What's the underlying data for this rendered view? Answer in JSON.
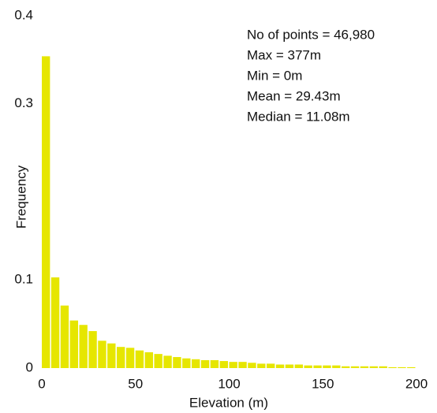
{
  "chart_data": {
    "type": "histogram",
    "xlabel": "Elevation (m)",
    "ylabel": "Frequency",
    "annotations": [
      "No of points = 46,980",
      "Max = 377m",
      "Min = 0m",
      "Mean = 29.43m",
      "Median = 11.08m"
    ],
    "bins": [
      0,
      5,
      10,
      15,
      20,
      25,
      30,
      35,
      40,
      45,
      50,
      55,
      60,
      65,
      70,
      75,
      80,
      85,
      90,
      95,
      100,
      105,
      110,
      115,
      120,
      125,
      130,
      135,
      140,
      145,
      150,
      155,
      160,
      165,
      170,
      175,
      180,
      185,
      190,
      195,
      200
    ],
    "values": [
      0.354,
      0.103,
      0.071,
      0.054,
      0.049,
      0.042,
      0.031,
      0.028,
      0.024,
      0.023,
      0.02,
      0.018,
      0.016,
      0.014,
      0.0125,
      0.011,
      0.01,
      0.009,
      0.009,
      0.008,
      0.007,
      0.007,
      0.006,
      0.005,
      0.005,
      0.004,
      0.004,
      0.004,
      0.003,
      0.003,
      0.003,
      0.003,
      0.002,
      0.002,
      0.002,
      0.002,
      0.002,
      0.001,
      0.001,
      0.001
    ],
    "color": "#e6e600",
    "xlim": [
      0,
      200
    ],
    "xticks": [
      0,
      50,
      100,
      150,
      200
    ],
    "ylim": [
      0,
      0.4
    ],
    "yticks": [
      0,
      0.1,
      0.3,
      0.4
    ],
    "grid": false
  }
}
